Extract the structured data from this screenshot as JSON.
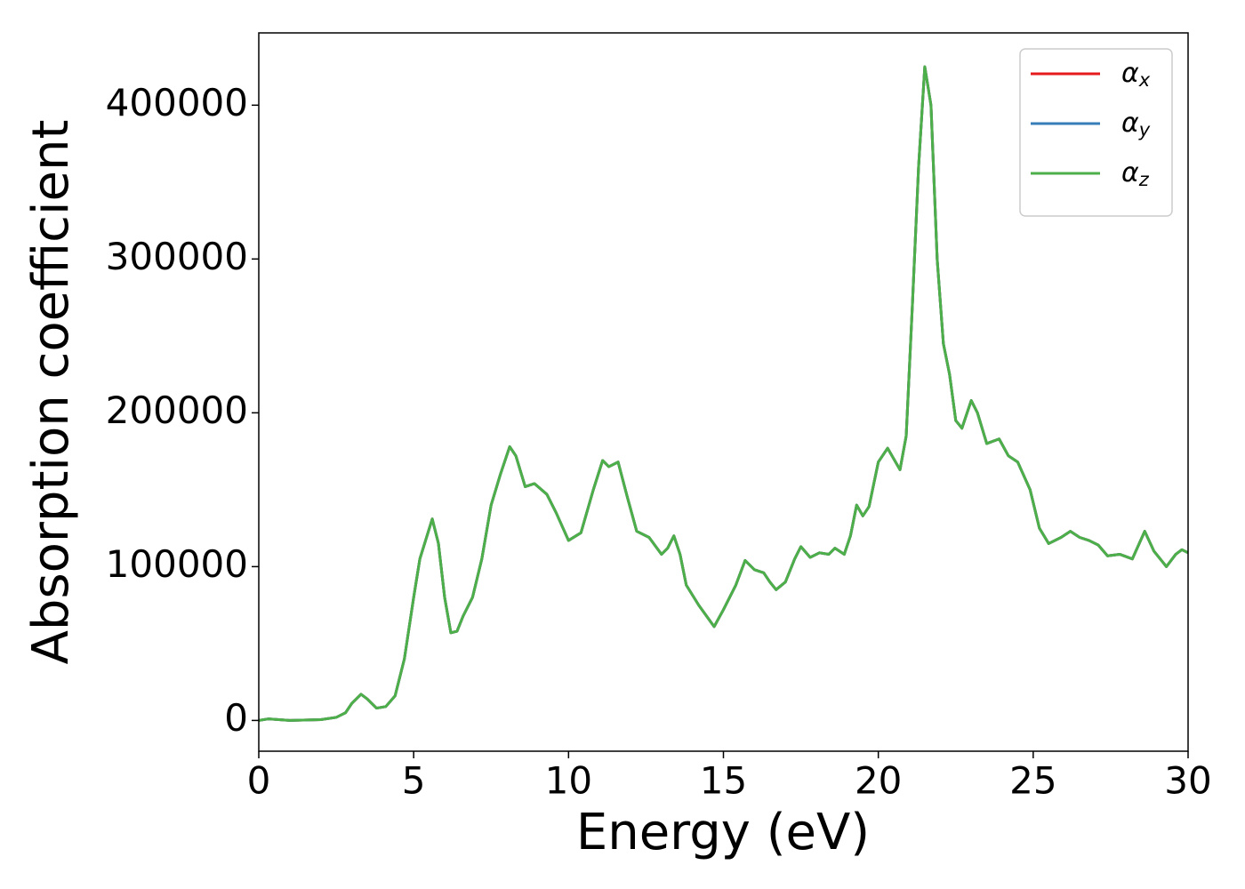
{
  "chart_data": {
    "type": "line",
    "x_label": "Energy (eV)",
    "y_label": "Absorption coefficient",
    "x": [
      0,
      0.3,
      1,
      2,
      2.5,
      2.8,
      3.0,
      3.3,
      3.5,
      3.8,
      4.1,
      4.4,
      4.7,
      5.0,
      5.2,
      5.4,
      5.6,
      5.8,
      6.0,
      6.2,
      6.4,
      6.6,
      6.9,
      7.2,
      7.5,
      7.8,
      8.1,
      8.3,
      8.6,
      8.9,
      9.3,
      9.6,
      10.0,
      10.4,
      10.8,
      11.1,
      11.3,
      11.6,
      11.9,
      12.2,
      12.6,
      13.0,
      13.2,
      13.4,
      13.6,
      13.8,
      14.2,
      14.7,
      15.0,
      15.4,
      15.7,
      16.0,
      16.3,
      16.5,
      16.7,
      17.0,
      17.3,
      17.5,
      17.8,
      18.1,
      18.4,
      18.6,
      18.9,
      19.1,
      19.3,
      19.5,
      19.7,
      20.0,
      20.3,
      20.5,
      20.7,
      20.9,
      21.1,
      21.3,
      21.5,
      21.7,
      21.9,
      22.1,
      22.3,
      22.5,
      22.7,
      23.0,
      23.2,
      23.5,
      23.9,
      24.2,
      24.5,
      24.9,
      25.2,
      25.5,
      25.9,
      26.2,
      26.5,
      26.8,
      27.1,
      27.4,
      27.8,
      28.2,
      28.6,
      28.9,
      29.3,
      29.6,
      29.8,
      30
    ],
    "series": [
      {
        "name": "αx",
        "color": "#e41a1c",
        "values": [
          0,
          1000,
          0,
          500,
          2000,
          5000,
          11000,
          17000,
          14000,
          8000,
          9000,
          16000,
          40000,
          80000,
          105000,
          118000,
          131000,
          115000,
          80000,
          57000,
          58000,
          68000,
          80000,
          105000,
          140000,
          160000,
          178000,
          172000,
          152000,
          154000,
          147000,
          135000,
          117000,
          122000,
          150000,
          169000,
          165000,
          168000,
          145000,
          123000,
          119000,
          108000,
          112000,
          120000,
          108000,
          88000,
          75000,
          61000,
          72000,
          88000,
          104000,
          98000,
          96000,
          90000,
          85000,
          90000,
          105000,
          113000,
          106000,
          109000,
          108000,
          112000,
          108000,
          120000,
          140000,
          133000,
          139000,
          168000,
          177000,
          170000,
          163000,
          185000,
          270000,
          360000,
          425000,
          400000,
          300000,
          245000,
          225000,
          195000,
          190000,
          208000,
          200000,
          180000,
          183000,
          172000,
          168000,
          150000,
          125000,
          115000,
          119000,
          123000,
          119000,
          117000,
          114000,
          107000,
          108000,
          105000,
          123000,
          110000,
          100000,
          108000,
          111000,
          109000
        ]
      },
      {
        "name": "αy",
        "color": "#377eb8",
        "values": [
          0,
          1000,
          0,
          500,
          2000,
          5000,
          11000,
          17000,
          14000,
          8000,
          9000,
          16000,
          40000,
          80000,
          105000,
          118000,
          131000,
          115000,
          80000,
          57000,
          58000,
          68000,
          80000,
          105000,
          140000,
          160000,
          178000,
          172000,
          152000,
          154000,
          147000,
          135000,
          117000,
          122000,
          150000,
          169000,
          165000,
          168000,
          145000,
          123000,
          119000,
          108000,
          112000,
          120000,
          108000,
          88000,
          75000,
          61000,
          72000,
          88000,
          104000,
          98000,
          96000,
          90000,
          85000,
          90000,
          105000,
          113000,
          106000,
          109000,
          108000,
          112000,
          108000,
          120000,
          140000,
          133000,
          139000,
          168000,
          177000,
          170000,
          163000,
          185000,
          270000,
          360000,
          425000,
          400000,
          300000,
          245000,
          225000,
          195000,
          190000,
          208000,
          200000,
          180000,
          183000,
          172000,
          168000,
          150000,
          125000,
          115000,
          119000,
          123000,
          119000,
          117000,
          114000,
          107000,
          108000,
          105000,
          123000,
          110000,
          100000,
          108000,
          111000,
          109000
        ]
      },
      {
        "name": "αz",
        "color": "#4daf4a",
        "values": [
          0,
          1000,
          0,
          500,
          2000,
          5000,
          11000,
          17000,
          14000,
          8000,
          9000,
          16000,
          40000,
          80000,
          105000,
          118000,
          131000,
          115000,
          80000,
          57000,
          58000,
          68000,
          80000,
          105000,
          140000,
          160000,
          178000,
          172000,
          152000,
          154000,
          147000,
          135000,
          117000,
          122000,
          150000,
          169000,
          165000,
          168000,
          145000,
          123000,
          119000,
          108000,
          112000,
          120000,
          108000,
          88000,
          75000,
          61000,
          72000,
          88000,
          104000,
          98000,
          96000,
          90000,
          85000,
          90000,
          105000,
          113000,
          106000,
          109000,
          108000,
          112000,
          108000,
          120000,
          140000,
          133000,
          139000,
          168000,
          177000,
          170000,
          163000,
          185000,
          270000,
          360000,
          425000,
          400000,
          300000,
          245000,
          225000,
          195000,
          190000,
          208000,
          200000,
          180000,
          183000,
          172000,
          168000,
          150000,
          125000,
          115000,
          119000,
          123000,
          119000,
          117000,
          114000,
          107000,
          108000,
          105000,
          123000,
          110000,
          100000,
          108000,
          111000,
          109000
        ]
      }
    ],
    "xlim": [
      0,
      30
    ],
    "xticks": [
      0,
      5,
      10,
      15,
      20,
      25,
      30
    ],
    "ylim": [
      -20000,
      447000
    ],
    "yticks": [
      0,
      100000,
      200000,
      300000,
      400000
    ],
    "grid": false,
    "legend": "upper right"
  }
}
